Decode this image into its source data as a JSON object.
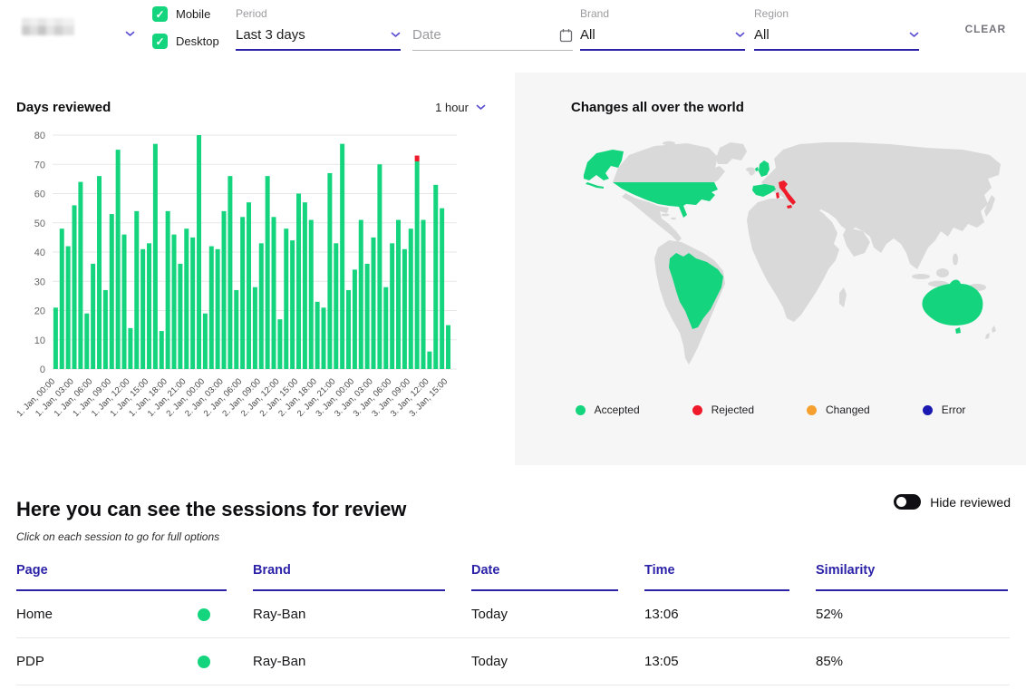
{
  "colors": {
    "green": "#14d57e",
    "red": "#ef1b2b",
    "orange": "#f6a12f",
    "navy": "#1c19b2",
    "accent": "#2b22a8",
    "accent_light": "#5a4fd4",
    "land": "#d9d9d9",
    "panel": "#f6f6f7",
    "grid": "#e7e7e7"
  },
  "header": {
    "checkboxes": [
      {
        "label": "Mobile",
        "checked": true
      },
      {
        "label": "Desktop",
        "checked": true
      }
    ],
    "filters": {
      "period": {
        "label": "Period",
        "value": "Last 3 days"
      },
      "date": {
        "label": "Date",
        "placeholder": "Date"
      },
      "brand": {
        "label": "Brand",
        "value": "All"
      },
      "region": {
        "label": "Region",
        "value": "All"
      }
    },
    "clear_label": "CLEAR"
  },
  "chart_panel": {
    "title": "Days reviewed",
    "interval_label": "1 hour"
  },
  "chart_data": {
    "type": "bar",
    "title": "Days reviewed",
    "interval": "1 hour",
    "ylim": [
      0,
      80
    ],
    "ytick_step": 10,
    "grid": true,
    "bar_color": "#14d57e",
    "rejected_color": "#ef1b2b",
    "x_tick_every": 3,
    "x_tick_labels": [
      "1. Jan, 00:00",
      "1. Jan, 03:00",
      "1. Jan, 06:00",
      "1. Jan, 09:00",
      "1. Jan, 12:00",
      "1. Jan, 15:00",
      "1. Jan, 18:00",
      "1. Jan, 21:00",
      "2. Jan, 00:00",
      "2. Jan, 03:00",
      "2. Jan, 06:00",
      "2. Jan, 09:00",
      "2. Jan, 12:00",
      "2. Jan, 15:00",
      "2. Jan, 18:00",
      "2. Jan, 21:00",
      "3. Jan, 00:00",
      "3. Jan, 03:00",
      "3. Jan, 06:00",
      "3. Jan, 09:00",
      "3. Jan, 12:00",
      "3. Jan, 15:00"
    ],
    "values": [
      21,
      48,
      42,
      56,
      64,
      19,
      36,
      66,
      27,
      53,
      75,
      46,
      14,
      54,
      41,
      43,
      77,
      13,
      54,
      46,
      36,
      48,
      45,
      80,
      19,
      42,
      41,
      54,
      66,
      27,
      52,
      57,
      28,
      43,
      66,
      52,
      17,
      48,
      44,
      60,
      57,
      51,
      23,
      21,
      67,
      43,
      77,
      27,
      34,
      51,
      36,
      45,
      70,
      28,
      43,
      51,
      41,
      48,
      71,
      51,
      6,
      63,
      55,
      15
    ],
    "red_overlay": {
      "bar_index": 58,
      "value": 2
    }
  },
  "map_panel": {
    "title": "Changes all over the world",
    "legend": [
      {
        "label": "Accepted",
        "color": "#14d57e"
      },
      {
        "label": "Rejected",
        "color": "#ef1b2b"
      },
      {
        "label": "Changed",
        "color": "#f6a12f"
      },
      {
        "label": "Error",
        "color": "#1c19b2"
      }
    ],
    "countries": {
      "accepted": [
        "United States",
        "United Kingdom",
        "Spain",
        "Brazil",
        "Australia"
      ],
      "rejected": [
        "Italy"
      ]
    }
  },
  "sessions": {
    "title": "Here you can see the sessions for review",
    "subtitle": "Click on each session to go for full options",
    "hide_reviewed_label": "Hide reviewed",
    "toggle_on": false,
    "columns": [
      "Page",
      "Brand",
      "Date",
      "Time",
      "Similarity"
    ],
    "rows": [
      {
        "page": "Home",
        "status_color": "#14d57e",
        "brand": "Ray-Ban",
        "date": "Today",
        "time": "13:06",
        "similarity": "52%"
      },
      {
        "page": "PDP",
        "status_color": "#14d57e",
        "brand": "Ray-Ban",
        "date": "Today",
        "time": "13:05",
        "similarity": "85%"
      }
    ]
  }
}
